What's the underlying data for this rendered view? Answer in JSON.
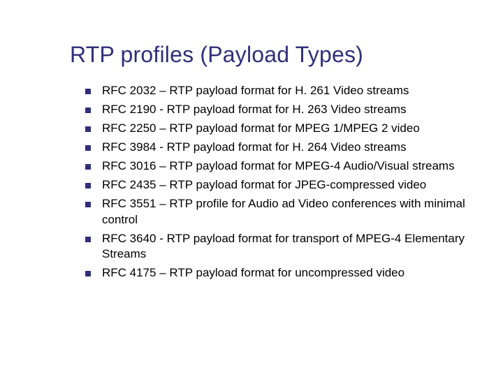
{
  "slide": {
    "title": "RTP profiles (Payload Types)",
    "title_color": "#2f2f7a",
    "title_fontsize": 32,
    "background_color": "#ffffff",
    "bullet_marker_color": "#2f2f7a",
    "bullet_marker_size": 8,
    "body_text_color": "#000000",
    "body_fontsize": 17,
    "items": [
      "RFC 2032 – RTP payload format for H. 261 Video streams",
      "RFC 2190 - RTP payload format for H. 263 Video streams",
      "RFC 2250 – RTP payload format for MPEG 1/MPEG 2 video",
      "RFC 3984 - RTP payload format for H. 264 Video streams",
      "RFC 3016 – RTP payload format for MPEG-4 Audio/Visual streams",
      "RFC 2435 – RTP payload format for JPEG-compressed video",
      "RFC 3551 – RTP profile for Audio ad Video conferences with minimal control",
      "RFC 3640 -  RTP payload format for transport of MPEG-4 Elementary Streams",
      "RFC 4175 – RTP payload format for uncompressed video"
    ]
  }
}
